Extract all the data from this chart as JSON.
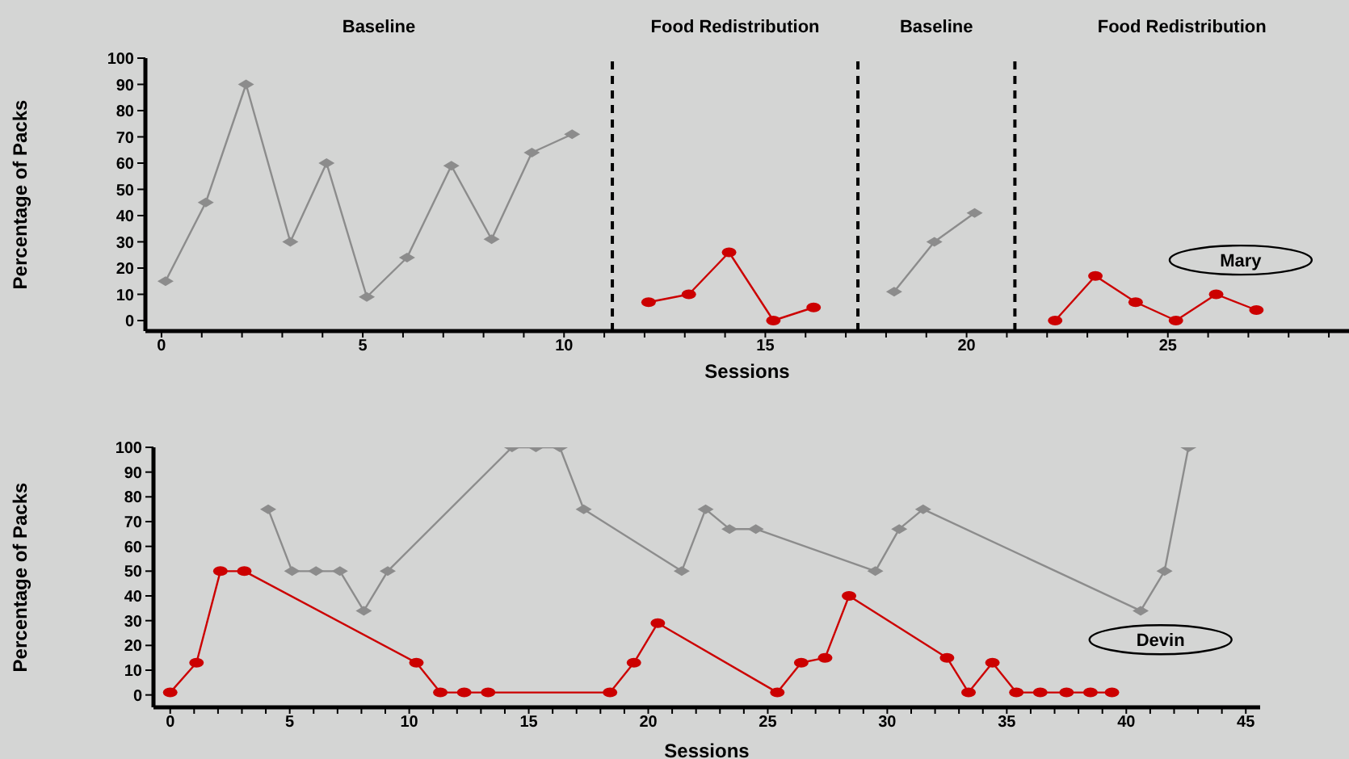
{
  "chart_data": [
    {
      "type": "line",
      "xlabel": "Sessions",
      "ylabel": "Percentage of Packs",
      "xlim": [
        -0.4,
        29.5
      ],
      "ylim": [
        -4,
        100
      ],
      "xticks": [
        0,
        {
          "value": 1,
          "label": null
        },
        {
          "value": 2,
          "label": null
        },
        {
          "value": 3,
          "label": null
        },
        {
          "value": 4,
          "label": null
        },
        5,
        {
          "value": 6,
          "label": null
        },
        {
          "value": 7,
          "label": null
        },
        {
          "value": 8,
          "label": null
        },
        {
          "value": 9,
          "label": null
        },
        10,
        {
          "value": 11,
          "label": null
        },
        {
          "value": 12,
          "label": null
        },
        {
          "value": 13,
          "label": null
        },
        {
          "value": 14,
          "label": null
        },
        15,
        {
          "value": 16,
          "label": null
        },
        {
          "value": 17,
          "label": null
        },
        {
          "value": 18,
          "label": null
        },
        {
          "value": 19,
          "label": null
        },
        20,
        {
          "value": 21,
          "label": null
        },
        {
          "value": 22,
          "label": null
        },
        {
          "value": 23,
          "label": null
        },
        {
          "value": 24,
          "label": null
        },
        25,
        {
          "value": 26,
          "label": null
        },
        {
          "value": 27,
          "label": null
        },
        {
          "value": 28,
          "label": null
        },
        {
          "value": 29,
          "label": null
        }
      ],
      "yticks": [
        0,
        10,
        20,
        30,
        40,
        50,
        60,
        70,
        80,
        90,
        100
      ],
      "series": [
        {
          "color": "#8c8c8c",
          "marker": "diamond",
          "x": [
            0.1,
            1.1,
            2.1,
            3.2,
            4.1,
            5.1,
            6.1,
            7.2,
            8.2,
            9.2,
            10.2
          ],
          "values": [
            15,
            45,
            90,
            30,
            60,
            9,
            24,
            59,
            31,
            64,
            71
          ]
        },
        {
          "color": "#cc0000",
          "marker": "circle",
          "x": [
            12.1,
            13.1,
            14.1,
            15.2,
            16.2
          ],
          "values": [
            7,
            10,
            26,
            0,
            5
          ]
        },
        {
          "color": "#8c8c8c",
          "marker": "diamond",
          "x": [
            18.2,
            19.2,
            20.2
          ],
          "values": [
            11,
            30,
            41
          ]
        },
        {
          "color": "#cc0000",
          "marker": "circle",
          "x": [
            22.2,
            23.2,
            24.2,
            25.2,
            26.2,
            27.2
          ],
          "values": [
            0,
            17,
            7,
            0,
            10,
            4
          ]
        }
      ],
      "ref_lines": [
        {
          "axis": "x",
          "value": 11.2,
          "color": "#000000",
          "line_style": "dashed"
        },
        {
          "axis": "x",
          "value": 17.3,
          "color": "#000000",
          "line_style": "dashed"
        },
        {
          "axis": "x",
          "value": 21.2,
          "color": "#000000",
          "line_style": "dashed"
        }
      ],
      "annotations": [
        "Baseline",
        "Food Redistribution",
        "Baseline",
        "Food Redistribution",
        "Mary"
      ]
    },
    {
      "type": "line",
      "xlabel": "Sessions",
      "ylabel": "Percentage of Packs",
      "xlim": [
        -0.7,
        45.6
      ],
      "ylim": [
        -5,
        100
      ],
      "xticks": [
        0,
        {
          "value": 1,
          "label": null
        },
        {
          "value": 2,
          "label": null
        },
        {
          "value": 3,
          "label": null
        },
        {
          "value": 4,
          "label": null
        },
        5,
        {
          "value": 6,
          "label": null
        },
        {
          "value": 7,
          "label": null
        },
        {
          "value": 8,
          "label": null
        },
        {
          "value": 9,
          "label": null
        },
        10,
        {
          "value": 11,
          "label": null
        },
        {
          "value": 12,
          "label": null
        },
        {
          "value": 13,
          "label": null
        },
        {
          "value": 14,
          "label": null
        },
        15,
        {
          "value": 16,
          "label": null
        },
        {
          "value": 17,
          "label": null
        },
        {
          "value": 18,
          "label": null
        },
        {
          "value": 19,
          "label": null
        },
        20,
        {
          "value": 21,
          "label": null
        },
        {
          "value": 22,
          "label": null
        },
        {
          "value": 23,
          "label": null
        },
        {
          "value": 24,
          "label": null
        },
        25,
        {
          "value": 26,
          "label": null
        },
        {
          "value": 27,
          "label": null
        },
        {
          "value": 28,
          "label": null
        },
        {
          "value": 29,
          "label": null
        },
        30,
        {
          "value": 31,
          "label": null
        },
        {
          "value": 32,
          "label": null
        },
        {
          "value": 33,
          "label": null
        },
        {
          "value": 34,
          "label": null
        },
        35,
        {
          "value": 36,
          "label": null
        },
        {
          "value": 37,
          "label": null
        },
        {
          "value": 38,
          "label": null
        },
        {
          "value": 39,
          "label": null
        },
        40,
        {
          "value": 41,
          "label": null
        },
        {
          "value": 42,
          "label": null
        },
        {
          "value": 43,
          "label": null
        },
        {
          "value": 44,
          "label": null
        },
        45
      ],
      "yticks": [
        0,
        10,
        20,
        30,
        40,
        50,
        60,
        70,
        80,
        90,
        100
      ],
      "series": [
        {
          "color": "#8c8c8c",
          "marker": "diamond",
          "x": [
            4.1,
            5.1,
            6.1,
            7.1,
            8.1,
            9.1,
            14.3,
            15.3,
            16.3,
            17.3,
            21.4,
            22.4,
            23.4,
            24.5,
            29.5,
            30.5,
            31.5,
            40.6,
            41.6,
            42.6
          ],
          "values": [
            75,
            50,
            50,
            50,
            34,
            50,
            100,
            100,
            100,
            75,
            50,
            75,
            67,
            67,
            50,
            67,
            75,
            34,
            50,
            100
          ]
        },
        {
          "color": "#cc0000",
          "marker": "circle",
          "x": [
            0,
            1.1,
            2.1,
            3.1,
            10.3,
            11.3,
            12.3,
            13.3,
            18.4,
            19.4,
            20.4,
            25.4,
            26.4,
            27.4,
            28.4,
            32.5,
            33.4,
            34.4,
            35.4,
            36.4,
            37.5,
            38.5,
            39.4
          ],
          "values": [
            1,
            13,
            50,
            50,
            13,
            1,
            1,
            1,
            1,
            13,
            29,
            1,
            13,
            15,
            40,
            15,
            1,
            13,
            1,
            1,
            1,
            1,
            1
          ]
        }
      ],
      "annotations": [
        "Devin"
      ]
    }
  ]
}
